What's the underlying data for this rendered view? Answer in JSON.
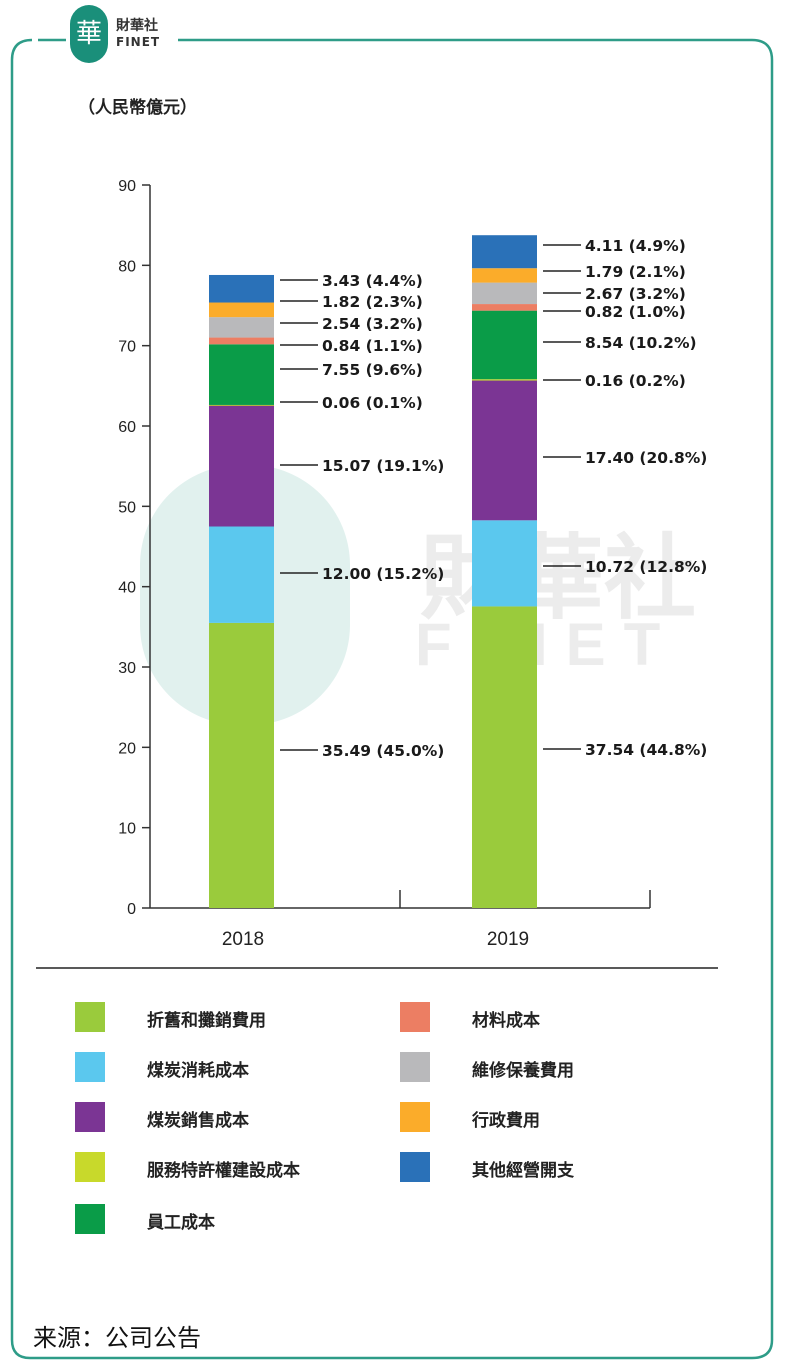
{
  "header": {
    "logo_cn": "財華社",
    "logo_en": "FINET",
    "logo_seal": "華",
    "unit_label": "（人民幣億元）"
  },
  "watermark": {
    "cn": "財華社",
    "en": "FINET"
  },
  "colors": {
    "frame": "#2e9c88",
    "axis": "#333333"
  },
  "chart_data": {
    "type": "bar",
    "stacked": true,
    "categories": [
      "2018",
      "2019"
    ],
    "ylim": [
      0,
      90
    ],
    "yticks": [
      0,
      10,
      20,
      30,
      40,
      50,
      60,
      70,
      80,
      90
    ],
    "series": [
      {
        "name": "折舊和攤銷費用",
        "color": "#9acb3c",
        "values": [
          35.49,
          37.54
        ],
        "labels": [
          "35.49 (45.0%)",
          "37.54 (44.8%)"
        ]
      },
      {
        "name": "煤炭消耗成本",
        "color": "#5bc8ee",
        "values": [
          12.0,
          10.72
        ],
        "labels": [
          "12.00 (15.2%)",
          "10.72 (12.8%)"
        ]
      },
      {
        "name": "煤炭銷售成本",
        "color": "#7b3594",
        "values": [
          15.07,
          17.4
        ],
        "labels": [
          "15.07 (19.1%)",
          "17.40 (20.8%)"
        ]
      },
      {
        "name": "服務特許權建設成本",
        "color": "#c8d92b",
        "values": [
          0.06,
          0.16
        ],
        "labels": [
          "0.06 (0.1%)",
          "0.16 (0.2%)"
        ]
      },
      {
        "name": "員工成本",
        "color": "#0a9c48",
        "values": [
          7.55,
          8.54
        ],
        "labels": [
          "7.55 (9.6%)",
          "8.54 (10.2%)"
        ]
      },
      {
        "name": "材料成本",
        "color": "#ec7e63",
        "values": [
          0.84,
          0.82
        ],
        "labels": [
          "0.84 (1.1%)",
          "0.82 (1.0%)"
        ]
      },
      {
        "name": "維修保養費用",
        "color": "#b9b9bb",
        "values": [
          2.54,
          2.67
        ],
        "labels": [
          "2.54 (3.2%)",
          "2.67 (3.2%)"
        ]
      },
      {
        "name": "行政費用",
        "color": "#fbac2a",
        "values": [
          1.82,
          1.79
        ],
        "labels": [
          "1.82 (2.3%)",
          "1.79 (2.1%)"
        ]
      },
      {
        "name": "其他經營開支",
        "color": "#2a71b8",
        "values": [
          3.43,
          4.11
        ],
        "labels": [
          "3.43 (4.4%)",
          "4.11 (4.9%)"
        ]
      }
    ]
  },
  "source": "来源：公司公告"
}
